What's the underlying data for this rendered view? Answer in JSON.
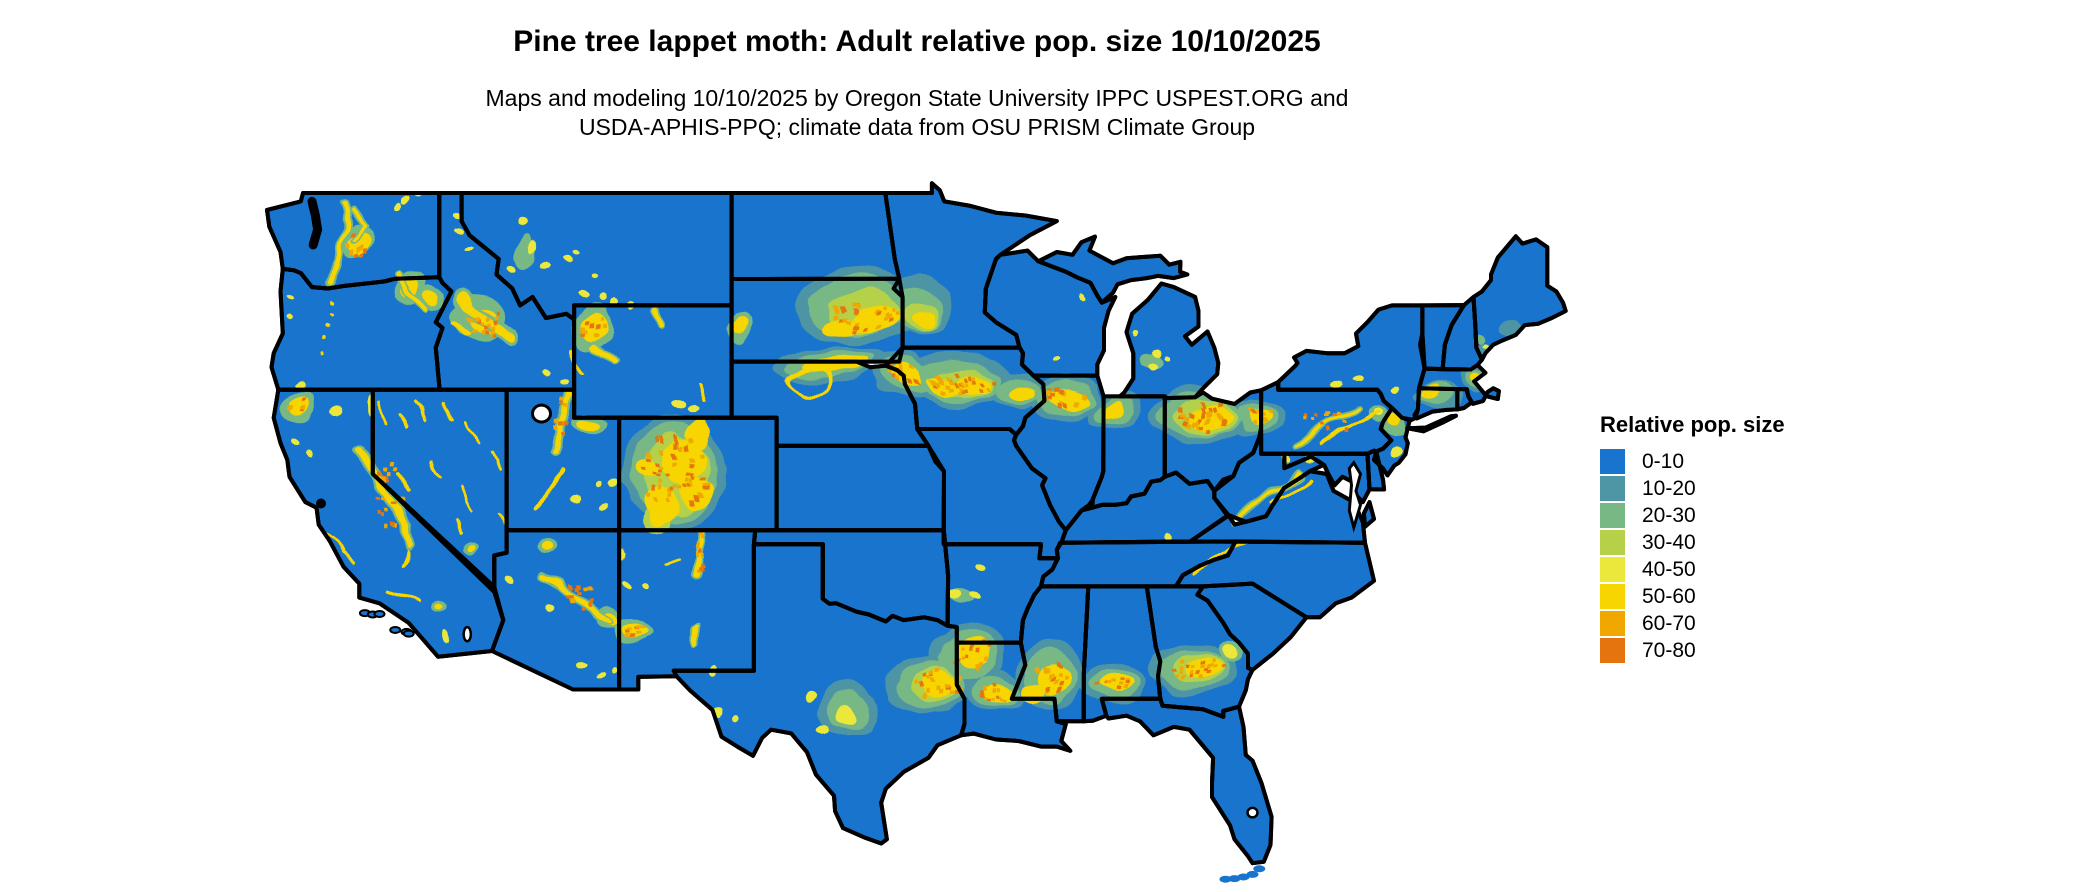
{
  "title": "Pine tree lappet moth: Adult relative pop. size 10/10/2025",
  "subtitle": {
    "line1": "Maps and modeling 10/10/2025 by Oregon State University IPPC USPEST.ORG and",
    "line2": "USDA-APHIS-PPQ; climate data from OSU PRISM Climate Group"
  },
  "legend": {
    "title": "Relative pop. size",
    "items": [
      {
        "label": "0-10",
        "color": "#1874cd"
      },
      {
        "label": "10-20",
        "color": "#4e95a5"
      },
      {
        "label": "20-30",
        "color": "#77b884"
      },
      {
        "label": "30-40",
        "color": "#b5d14a"
      },
      {
        "label": "40-50",
        "color": "#ebe83b"
      },
      {
        "label": "50-60",
        "color": "#f7d500"
      },
      {
        "label": "60-70",
        "color": "#f0a800"
      },
      {
        "label": "70-80",
        "color": "#e5740e"
      }
    ]
  },
  "map": {
    "type": "choropleth-raster",
    "region": "contiguous United States",
    "base_band": "0-10",
    "border_color": "#000000",
    "water_color": "#ffffff",
    "high_value_areas": [
      "Cascades and Blue Mountains (WA/OR)",
      "Central Idaho and western Montana ranges",
      "Greater Yellowstone and Wyoming ranges",
      "Colorado Rockies",
      "Sierra Nevada and Klamath (CA)",
      "Great Basin ranges (NV/UT)",
      "Mogollon Rim (AZ) and NM ranges",
      "Eastern Dakotas - Minnesota blob",
      "Corn Belt band (NE-IA-IL-IN-OH) into PA ridges",
      "Gulf Coastal Plain band (E TX-LA-MS-AL-GA)",
      "Appalachian ridges (WV/VA/NC)"
    ]
  }
}
